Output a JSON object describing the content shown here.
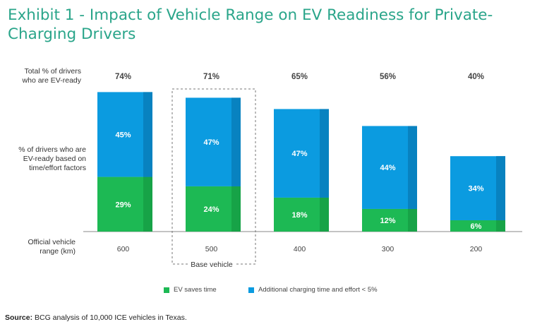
{
  "title": "Exhibit 1 - Impact of Vehicle Range on EV Readiness for Private-Charging Drivers",
  "row_labels": {
    "total": [
      "Total % of drivers",
      "who are EV-ready"
    ],
    "segments": [
      "% of drivers who are",
      "EV-ready based on",
      "time/effort factors"
    ],
    "range": [
      "Official vehicle",
      "range (km)"
    ]
  },
  "base_vehicle_label": "Base vehicle",
  "legend": {
    "saves": "EV saves time",
    "additional": "Additional charging time and effort < 5%"
  },
  "source": {
    "prefix": "Source:",
    "text": " BCG analysis of 10,000 ICE vehicles in Texas."
  },
  "colors": {
    "green": "#1db954",
    "green_dark": "#17a347",
    "blue": "#0b9be0",
    "blue_dark": "#0882c0",
    "title": "#2aa58a"
  },
  "chart_data": {
    "type": "bar",
    "stacked": true,
    "categories": [
      "600",
      "500",
      "400",
      "300",
      "200"
    ],
    "totals": [
      "74%",
      "71%",
      "65%",
      "56%",
      "40%"
    ],
    "series": [
      {
        "name": "EV saves time",
        "values": [
          29,
          24,
          18,
          12,
          6
        ]
      },
      {
        "name": "Additional charging time and effort < 5%",
        "values": [
          45,
          47,
          47,
          44,
          34
        ]
      }
    ],
    "highlight_category": "500",
    "unit": "%"
  }
}
